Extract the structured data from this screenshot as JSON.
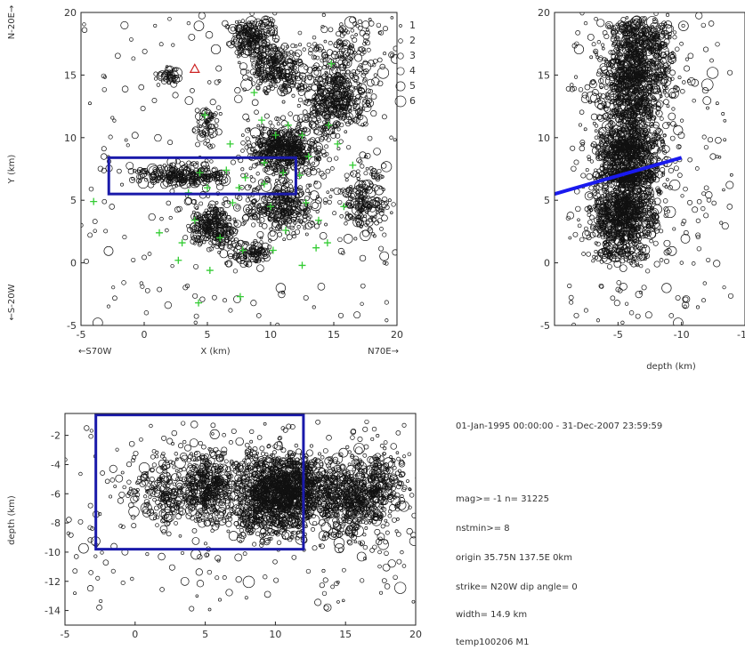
{
  "chart_data": [
    {
      "type": "scatter",
      "panel": "map-view",
      "xlabel": "X (km)",
      "ylabel": "Y (km)",
      "xlim": [
        -5,
        20
      ],
      "ylim": [
        -5,
        20
      ],
      "xticks": [
        -5,
        0,
        5,
        10,
        15,
        20
      ],
      "yticks": [
        -5,
        0,
        5,
        10,
        15,
        20
      ],
      "direction_labels": {
        "top": "N-20E→",
        "bottom": "←S-20W",
        "left": "←S70W",
        "right": "N70E→"
      },
      "size_legend": [
        "1",
        "2",
        "3",
        "4",
        "5",
        "6"
      ],
      "cluster_description": [
        {
          "cx": 8.5,
          "cy": 18.0,
          "sx": 1.6,
          "sy": 1.3,
          "n": 220
        },
        {
          "cx": 10.5,
          "cy": 15.5,
          "sx": 1.8,
          "sy": 1.6,
          "n": 260
        },
        {
          "cx": 15.0,
          "cy": 13.0,
          "sx": 2.2,
          "sy": 2.3,
          "n": 420
        },
        {
          "cx": 11.0,
          "cy": 9.0,
          "sx": 2.2,
          "sy": 1.6,
          "n": 520
        },
        {
          "cx": 3.0,
          "cy": 7.0,
          "sx": 3.0,
          "sy": 0.7,
          "n": 260
        },
        {
          "cx": 5.5,
          "cy": 3.0,
          "sx": 1.5,
          "sy": 1.6,
          "n": 260
        },
        {
          "cx": 11.0,
          "cy": 4.5,
          "sx": 2.5,
          "sy": 1.8,
          "n": 300
        },
        {
          "cx": 17.5,
          "cy": 5.0,
          "sx": 1.7,
          "sy": 2.2,
          "n": 180
        },
        {
          "cx": 5.0,
          "cy": 11.0,
          "sx": 0.7,
          "sy": 1.4,
          "n": 60
        },
        {
          "cx": 8.5,
          "cy": 0.8,
          "sx": 1.2,
          "sy": 0.8,
          "n": 90
        },
        {
          "cx": 16.0,
          "cy": 17.0,
          "sx": 2.5,
          "sy": 2.0,
          "n": 120
        },
        {
          "cx": 2.0,
          "cy": 15.0,
          "sx": 0.8,
          "sy": 0.6,
          "n": 40
        }
      ],
      "section_box": {
        "x": [
          -2.8,
          12.0
        ],
        "y": [
          5.5,
          8.4
        ],
        "color": "#1a1aaa"
      },
      "station_triangle": {
        "x": 4.0,
        "y": 15.5,
        "color": "#cc2222"
      },
      "stations": [
        [
          14.8,
          15.9
        ],
        [
          8.7,
          13.6
        ],
        [
          9.3,
          11.4
        ],
        [
          11.4,
          11.0
        ],
        [
          14.6,
          11.0
        ],
        [
          4.8,
          11.8
        ],
        [
          10.4,
          10.2
        ],
        [
          12.5,
          10.2
        ],
        [
          6.8,
          9.5
        ],
        [
          15.3,
          9.5
        ],
        [
          13.0,
          8.5
        ],
        [
          9.5,
          8.0
        ],
        [
          16.5,
          7.8
        ],
        [
          4.4,
          7.2
        ],
        [
          6.5,
          7.4
        ],
        [
          8.0,
          6.8
        ],
        [
          11.0,
          7.2
        ],
        [
          12.3,
          7.0
        ],
        [
          5.0,
          6.0
        ],
        [
          7.5,
          6.0
        ],
        [
          9.5,
          6.3
        ],
        [
          3.5,
          5.6
        ],
        [
          -4.0,
          4.9
        ],
        [
          7.0,
          4.8
        ],
        [
          10.0,
          4.5
        ],
        [
          12.8,
          4.8
        ],
        [
          15.8,
          4.5
        ],
        [
          4.0,
          3.4
        ],
        [
          13.8,
          3.4
        ],
        [
          1.2,
          2.4
        ],
        [
          6.0,
          2.0
        ],
        [
          11.2,
          2.6
        ],
        [
          3.0,
          1.6
        ],
        [
          14.5,
          1.6
        ],
        [
          7.8,
          1.0
        ],
        [
          13.6,
          1.2
        ],
        [
          2.7,
          0.2
        ],
        [
          10.2,
          1.0
        ],
        [
          5.2,
          -0.6
        ],
        [
          12.5,
          -0.2
        ],
        [
          7.6,
          -2.7
        ],
        [
          4.3,
          -3.2
        ]
      ],
      "station_color": "#33cc33"
    },
    {
      "type": "scatter",
      "panel": "cross-section-y",
      "xlabel": "depth (km)",
      "xlim": [
        0,
        -15
      ],
      "ylim": [
        -5,
        20
      ],
      "xticks": [
        -5,
        -10,
        -15
      ],
      "yticks": [
        -5,
        0,
        5,
        10,
        15,
        20
      ],
      "fault_line": {
        "x": [
          0,
          -10
        ],
        "y": [
          5.5,
          8.4
        ],
        "color": "#1a1aee"
      }
    },
    {
      "type": "scatter",
      "panel": "cross-section-x",
      "ylabel": "depth (km)",
      "xlim": [
        -5,
        20
      ],
      "ylim": [
        -15,
        -0.5
      ],
      "xticks": [
        -5,
        0,
        5,
        10,
        15,
        20
      ],
      "yticks": [
        -2,
        -4,
        -6,
        -8,
        -10,
        -12,
        -14
      ],
      "section_box": {
        "x": [
          -2.8,
          12.0
        ],
        "y": [
          -0.6,
          -9.8
        ],
        "color": "#1a1aaa"
      }
    }
  ],
  "info": {
    "period": "01-Jan-1995 00:00:00 - 31-Dec-2007 23:59:59",
    "mag_line": "mag>= -1   n= 31225",
    "nstmin": "nstmin>= 8",
    "origin": "origin 35.75N 137.5E 0km",
    "strike": "strike= N20W   dip angle= 0",
    "width": "width= 14.9  km",
    "file": "temp100206  M1"
  }
}
